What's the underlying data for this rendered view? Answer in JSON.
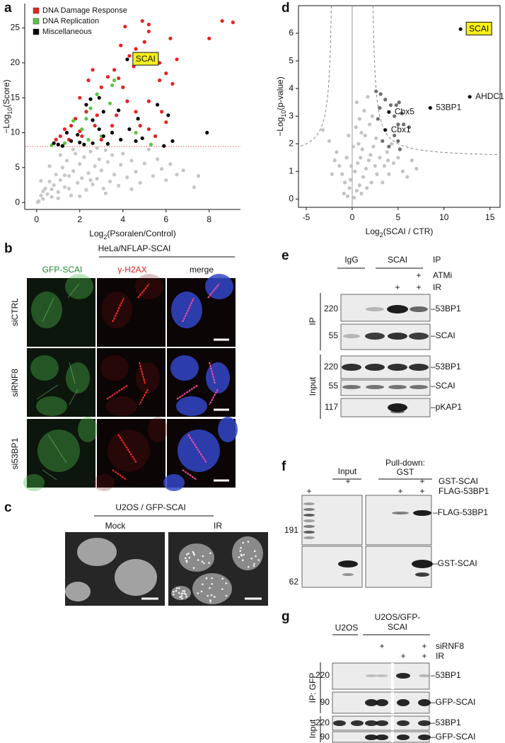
{
  "chart_data": [
    {
      "type": "scatter",
      "panel_label": "a",
      "xlabel": [
        "Log",
        "2",
        "(Psoralen/Control)"
      ],
      "ylabel": [
        "−Log",
        "10",
        "(Score)"
      ],
      "xlim": [
        -0.55,
        9.45
      ],
      "ylim": [
        -1,
        28.5
      ],
      "xticks": [
        0,
        2,
        4,
        6,
        8
      ],
      "yticks": [
        0,
        5,
        10,
        15,
        20,
        25
      ],
      "legend": "upper left",
      "series": [
        {
          "color": "#c6c6c6",
          "x": [
            0.1,
            0.2,
            0.3,
            0.4,
            0.5,
            0.6,
            0.7,
            0.8,
            0.9,
            1,
            1.1,
            1.2,
            1.3,
            1.4,
            1.5,
            1.6,
            1.7,
            1.8,
            1.9,
            2,
            2.1,
            2.2,
            2.3,
            2.4,
            2.5,
            2.6,
            2.7,
            2.8,
            2.9,
            3,
            3.1,
            3.2,
            3.3,
            3.4,
            3.5,
            3.6,
            3.8,
            3.9,
            4,
            4.2,
            4.4,
            4.6,
            4.8,
            5,
            5.2,
            5.4,
            5.6,
            5.8,
            6,
            6.2,
            6.5,
            6.8,
            7.3,
            7.5,
            0.05,
            0.3,
            0.7,
            1.0,
            1.3,
            2,
            1.5,
            2.5,
            3.2,
            4.4,
            0.2,
            0.6,
            1.1,
            2.8,
            1.7
          ],
          "values": [
            0.2,
            1,
            0.5,
            2,
            1.2,
            3,
            0.8,
            2.5,
            4,
            1.5,
            3.2,
            5,
            2.2,
            6,
            3.8,
            1,
            4.5,
            7,
            2.8,
            5.5,
            3.5,
            6.5,
            1.8,
            4.2,
            7.3,
            2.6,
            5.2,
            3.4,
            6.2,
            4.6,
            2,
            7.5,
            5.8,
            3,
            6.8,
            4,
            2.4,
            5.4,
            7,
            3.6,
            6,
            4.4,
            2.8,
            5.6,
            7.6,
            3.8,
            6.2,
            4.8,
            3.2,
            5.5,
            4,
            4.6,
            2.2,
            3.8,
            0.05,
            1.6,
            1.9,
            0.6,
            3.9,
            0.9,
            2,
            3.2,
            1.3,
            1.9,
            3.1,
            5.2,
            6.8,
            7.8,
            7.6
          ]
        },
        {
          "name": "DNA Damage Response",
          "color": "#e8221f",
          "x": [
            4.3,
            4.6,
            5.0,
            5.2,
            5.2,
            4.1,
            4.5,
            3.8,
            4.0,
            4.2,
            3.3,
            3.6,
            2.6,
            3.0,
            2.4,
            2.0,
            2.3,
            2.8,
            1.8,
            1.6,
            1.3,
            1.1,
            0.9,
            1.5,
            2.1,
            2.7,
            3.5,
            3.7,
            4.6,
            5.2,
            5.5,
            5.8,
            5.7,
            6.0,
            6.3,
            6.5,
            5.5,
            6.2,
            8.0,
            8.6,
            9.1,
            5.2,
            4.8,
            2.0,
            3.0,
            6.0,
            3.9,
            4.9,
            5.7
          ],
          "values": [
            21,
            22,
            23,
            24.5,
            25.5,
            25.2,
            19.5,
            17.8,
            16.5,
            14.5,
            18,
            19,
            19,
            16.5,
            17.5,
            15,
            13,
            12.5,
            12,
            11,
            10.5,
            9.5,
            9,
            9,
            9.5,
            11,
            11,
            12.5,
            13,
            10.5,
            9.5,
            13,
            17.5,
            18.5,
            17,
            20.5,
            21,
            23.5,
            23.5,
            26,
            25.8,
            14.5,
            11,
            10.2,
            9,
            11.5,
            22.5,
            26,
            20
          ]
        },
        {
          "name": "DNA Replication",
          "color": "#5cc444",
          "x": [
            3.6,
            3.5,
            3.4,
            2.8,
            2.5,
            2.3,
            1.7,
            2.1,
            3.0,
            0.7,
            1.3,
            5.3,
            4.6,
            2.4
          ],
          "values": [
            17.5,
            16.8,
            14.2,
            15.5,
            13.5,
            12,
            11.7,
            10.5,
            9.5,
            8.2,
            8.5,
            8.3,
            10,
            9
          ]
        },
        {
          "name": "Miscellaneous",
          "color": "#000000",
          "x": [
            4.2,
            2.9,
            2.5,
            2.3,
            3.1,
            3.8,
            2.6,
            1.4,
            0.8,
            1.0,
            1.6,
            2.0,
            2.6,
            3.1,
            3.5,
            3.9,
            4.6,
            4.9,
            4.7,
            5.6,
            6.1,
            6.3,
            7.9,
            5.9,
            3.3,
            1.2,
            2.2,
            4.3,
            1.9,
            2.9
          ],
          "values": [
            20.5,
            15,
            14.8,
            14,
            13,
            13.2,
            11.8,
            10,
            8.5,
            8.3,
            8.8,
            8.6,
            8.5,
            9.5,
            10,
            9,
            8.8,
            9.2,
            12,
            14,
            12.5,
            8.8,
            10,
            8.1,
            8.4,
            8.1,
            8.3,
            10.5,
            9.7,
            10.5
          ]
        }
      ],
      "annotations": [
        {
          "text": "SCAI",
          "x": 4.2,
          "y": 20.5,
          "boxed": true,
          "box_color": "#f7ef1a"
        }
      ]
    },
    {
      "type": "scatter",
      "panel_label": "d",
      "xlabel": [
        "Log",
        "2",
        "(SCAI / CTR)"
      ],
      "ylabel": [
        "−Log",
        "10",
        "(p-value)"
      ],
      "xlim": [
        -5.85,
        16.1
      ],
      "ylim": [
        -0.3,
        7.0
      ],
      "xticks": [
        -5,
        0,
        5,
        10,
        15
      ],
      "yticks": [
        0,
        1,
        2,
        3,
        4,
        5,
        6
      ],
      "series": [
        {
          "color": "#c2c2c2",
          "x": [
            -0.5,
            0.2,
            0.5,
            -0.3,
            0.8,
            -0.8,
            1,
            1.2,
            -1.1,
            0.3,
            1.5,
            -1.4,
            0.6,
            1.8,
            -0.6,
            2.0,
            -1.7,
            1.1,
            2.3,
            0.7,
            -2.5,
            2.6,
            1.4,
            -3.2,
            0.4,
            1.9,
            2.2,
            3.0,
            3.5,
            4.0,
            4.5,
            5.5,
            6,
            7,
            3.3,
            2.7,
            -0.2,
            0.9,
            1.6,
            -0.9,
            0.1,
            -0.4,
            2.5,
            3.8,
            4.3,
            1.3,
            0.8,
            -1.9,
            -2.2,
            5.0,
            2.1,
            1.0,
            6.5,
            3.9,
            -0.1,
            0.5,
            1.7
          ],
          "values": [
            0.1,
            0.05,
            0.3,
            0.4,
            0.5,
            0.6,
            0.2,
            0.8,
            0.9,
            1.0,
            1.1,
            1.2,
            1.3,
            1.4,
            1.5,
            1.6,
            1.7,
            1.8,
            1.9,
            2.0,
            2.1,
            2.2,
            2.3,
            2.5,
            2.6,
            2.7,
            3.0,
            1.5,
            1.2,
            0.9,
            1.3,
            1.0,
            0.8,
            1.1,
            0.6,
            0.9,
            0.7,
            1.5,
            0.4,
            0.2,
            1.9,
            2.3,
            1.2,
            1.7,
            2.0,
            3.2,
            2.9,
            1.4,
            0.9,
            1.5,
            0.6,
            2.4,
            1.4,
            1.4,
            1.2,
            3.5,
            3.7
          ]
        },
        {
          "color": "#6e6e6e",
          "x": [
            2.6,
            3.1,
            3.6,
            4.2,
            4.8,
            5.1,
            4.6,
            5.4,
            5.0,
            6.2,
            5.6,
            3.0,
            2.8,
            4.6,
            5.0,
            5.2,
            4.0,
            3.3
          ],
          "values": [
            3.9,
            3.8,
            3.6,
            3.4,
            3.4,
            3.5,
            3.0,
            3.1,
            2.7,
            2.6,
            2.7,
            3.3,
            2.9,
            2.3,
            2.1,
            1.8,
            1.9,
            2.1
          ]
        },
        {
          "color": "#111111",
          "x": [
            11.8,
            12.8,
            8.5,
            4.0,
            3.6
          ],
          "values": [
            6.15,
            3.7,
            3.3,
            3.15,
            2.5
          ]
        }
      ],
      "annotations": [
        {
          "text": "SCAI",
          "x": 11.8,
          "y": 6.15,
          "boxed": true,
          "box_color": "#f7ef1a"
        },
        {
          "text": "AHDC1",
          "x": 12.8,
          "y": 3.7,
          "boxed": false
        },
        {
          "text": "53BP1",
          "x": 8.5,
          "y": 3.3,
          "boxed": false
        },
        {
          "text": "Cbx5",
          "x": 4.0,
          "y": 3.15,
          "boxed": false
        },
        {
          "text": "Cbx1",
          "x": 3.6,
          "y": 2.5,
          "boxed": false
        }
      ]
    }
  ],
  "panels": {
    "b": {
      "label": "b",
      "title": "HeLa/NFLAP-SCAI",
      "columns": [
        "GFP-SCAI",
        "γ-H2AX",
        "merge"
      ],
      "rows": [
        "siCTRL",
        "siRNF8",
        "si53BP1"
      ]
    },
    "c": {
      "label": "c",
      "title": "U2OS / GFP-SCAI",
      "columns": [
        "Mock",
        "IR"
      ]
    },
    "e": {
      "label": "e",
      "groups": [
        "IgG",
        "SCAI"
      ],
      "method": "IP",
      "conditions": [
        {
          "name": "ATMi",
          "marks": [
            "+"
          ]
        },
        {
          "name": "IR",
          "marks": [
            "+",
            "+"
          ]
        }
      ],
      "sections": [
        {
          "name": "IP",
          "blots": [
            {
              "marker": "220",
              "target": "–53BP1"
            },
            {
              "marker": "55",
              "target": "–SCAI"
            }
          ]
        },
        {
          "name": "Input",
          "blots": [
            {
              "marker": "220",
              "target": "–53BP1"
            },
            {
              "marker": "55",
              "target": "–SCAI"
            },
            {
              "marker": "117",
              "target": "–pKAP1"
            }
          ]
        }
      ]
    },
    "f": {
      "label": "f",
      "groups": [
        [
          "Input"
        ],
        [
          "Pull-down:",
          "GST"
        ]
      ],
      "conditions": [
        {
          "name": "GST-SCAI",
          "marks": [
            "+",
            "+"
          ]
        },
        {
          "name": "FLAG-53BP1",
          "marks": [
            "+",
            "+",
            "+"
          ]
        }
      ],
      "blots": [
        {
          "marker": "191",
          "target": "–FLAG-53BP1"
        },
        {
          "marker": "62",
          "target": "–GST-SCAI"
        }
      ]
    },
    "g": {
      "label": "g",
      "groups": [
        [
          "U2OS"
        ],
        [
          "U2OS/GFP-",
          "SCAI"
        ]
      ],
      "conditions": [
        {
          "name": "siRNF8",
          "marks": [
            "+",
            "+"
          ]
        },
        {
          "name": "IR",
          "marks": [
            "+",
            "+"
          ]
        }
      ],
      "sections": [
        {
          "name": "IP: GFP",
          "blots": [
            {
              "marker": "220",
              "target": "–53BP1"
            },
            {
              "marker": "90",
              "target": "–GFP-SCAI"
            }
          ]
        },
        {
          "name": "Input",
          "blots": [
            {
              "marker": "220",
              "target": "–53BP1"
            },
            {
              "marker": "90",
              "target": "–GFP-SCAI"
            }
          ]
        }
      ]
    }
  }
}
